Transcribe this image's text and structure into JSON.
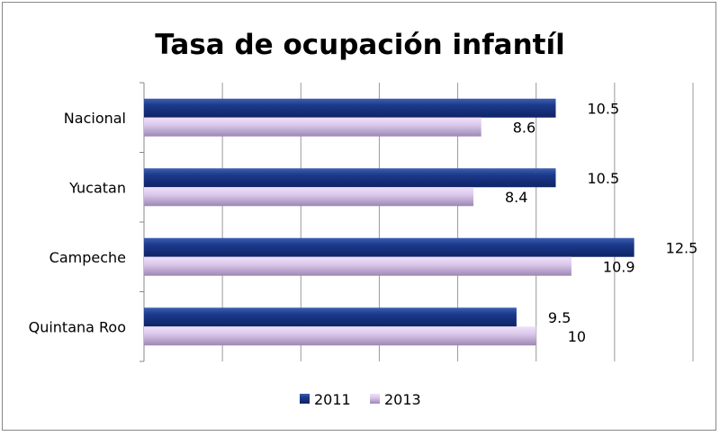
{
  "chart_data": {
    "type": "bar",
    "orientation": "horizontal",
    "title": "Tasa de ocupación infantíl",
    "categories": [
      "Nacional",
      "Yucatan",
      "Campeche",
      "Quintana Roo"
    ],
    "series": [
      {
        "name": "2011",
        "values": [
          10.5,
          10.5,
          12.5,
          9.5
        ],
        "color": "#1f3a8a"
      },
      {
        "name": "2013",
        "values": [
          8.6,
          8.4,
          10.9,
          10
        ],
        "color": "#c9b6dc"
      }
    ],
    "xlim": [
      0,
      14
    ],
    "grid": true,
    "legend": "bottom",
    "xlabel": "",
    "ylabel": ""
  }
}
